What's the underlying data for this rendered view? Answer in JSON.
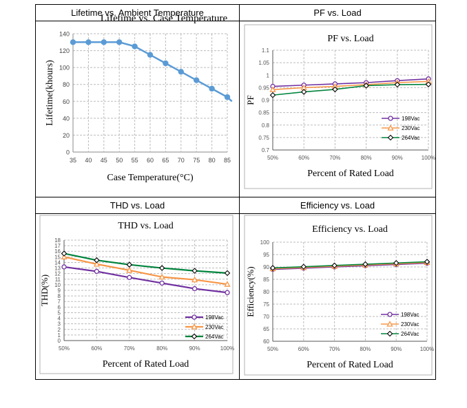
{
  "headers": [
    "Lifetime vs. Ambient Temperature",
    "PF vs. Load",
    "THD vs. Load",
    "Efficiency vs. Load"
  ],
  "chart_data": [
    {
      "type": "line",
      "title": "Lifetime vs. Case Temperature",
      "xlabel": "Case Temperature(°C)",
      "ylabel": "Lifetime(khours)",
      "x": [
        35,
        40,
        45,
        50,
        55,
        60,
        65,
        70,
        75,
        80,
        85
      ],
      "xticks": [
        "35",
        "40",
        "45",
        "50",
        "55",
        "60",
        "65",
        "70",
        "75",
        "80",
        "85"
      ],
      "yticks": [
        "0",
        "20",
        "40",
        "60",
        "80",
        "100",
        "120",
        "140"
      ],
      "xlim": [
        35,
        85
      ],
      "ylim": [
        0,
        140
      ],
      "series": [
        {
          "name": "Lifetime",
          "color": "#5b9bd5",
          "values": [
            130,
            130,
            130,
            130,
            125,
            115,
            105,
            95,
            85,
            75,
            65
          ],
          "extend_to": [
            86.5,
            60
          ]
        }
      ]
    },
    {
      "type": "line",
      "title": "PF vs. Load",
      "xlabel": "Percent of Rated Load",
      "ylabel": "PF",
      "categories": [
        "50%",
        "60%",
        "70%",
        "80%",
        "90%",
        "100%"
      ],
      "yticks": [
        "0.7",
        "0.75",
        "0.8",
        "0.85",
        "0.9",
        "0.95",
        "1",
        "1.05",
        "1.1"
      ],
      "ylim": [
        0.7,
        1.1
      ],
      "legend": "bottom-right",
      "series": [
        {
          "name": "198Vac",
          "color": "#7030a0",
          "marker": "circle",
          "values": [
            0.955,
            0.96,
            0.965,
            0.97,
            0.978,
            0.985
          ]
        },
        {
          "name": "230Vac",
          "color": "#f79646",
          "marker": "triangle",
          "values": [
            0.942,
            0.95,
            0.955,
            0.962,
            0.97,
            0.975
          ]
        },
        {
          "name": "264Vac",
          "color": "#00843d",
          "marker": "diamond",
          "values": [
            0.92,
            0.933,
            0.943,
            0.958,
            0.962,
            0.963
          ]
        }
      ]
    },
    {
      "type": "line",
      "title": "THD vs. Load",
      "xlabel": "Percent of Rated Load",
      "ylabel": "THD(%)",
      "categories": [
        "50%",
        "60%",
        "70%",
        "80%",
        "90%",
        "100%"
      ],
      "yticks": [
        "0",
        "1",
        "2",
        "3",
        "4",
        "5",
        "6",
        "7",
        "8",
        "9",
        "10",
        "11",
        "12",
        "13",
        "14",
        "15",
        "16",
        "17",
        "18"
      ],
      "ylim": [
        0,
        18
      ],
      "legend": "bottom-right",
      "series": [
        {
          "name": "198Vac",
          "color": "#7030a0",
          "marker": "circle",
          "values": [
            13.2,
            12.4,
            11.3,
            10.3,
            9.3,
            8.6
          ]
        },
        {
          "name": "230Vac",
          "color": "#f79646",
          "marker": "triangle",
          "values": [
            15.0,
            13.7,
            12.6,
            11.4,
            10.9,
            10.1
          ]
        },
        {
          "name": "264Vac",
          "color": "#00843d",
          "marker": "diamond",
          "values": [
            15.6,
            14.4,
            13.6,
            13.0,
            12.5,
            12.1
          ]
        }
      ]
    },
    {
      "type": "line",
      "title": "Efficiency vs. Load",
      "xlabel": "Percent of Rated Load",
      "ylabel": "Efficiency(%)",
      "categories": [
        "50%",
        "60%",
        "70%",
        "80%",
        "90%",
        "100%"
      ],
      "yticks": [
        "60",
        "65",
        "70",
        "75",
        "80",
        "85",
        "90",
        "95",
        "100"
      ],
      "ylim": [
        60,
        100
      ],
      "legend": "bottom-right",
      "series": [
        {
          "name": "198Vac",
          "color": "#7030a0",
          "marker": "circle",
          "values": [
            89.0,
            89.5,
            90.0,
            90.5,
            91.0,
            91.5
          ]
        },
        {
          "name": "230Vac",
          "color": "#f79646",
          "marker": "triangle",
          "values": [
            89.3,
            89.8,
            90.3,
            90.8,
            91.3,
            91.8
          ]
        },
        {
          "name": "264Vac",
          "color": "#00843d",
          "marker": "diamond",
          "values": [
            89.6,
            90.1,
            90.6,
            91.1,
            91.6,
            92.1
          ]
        }
      ]
    }
  ]
}
